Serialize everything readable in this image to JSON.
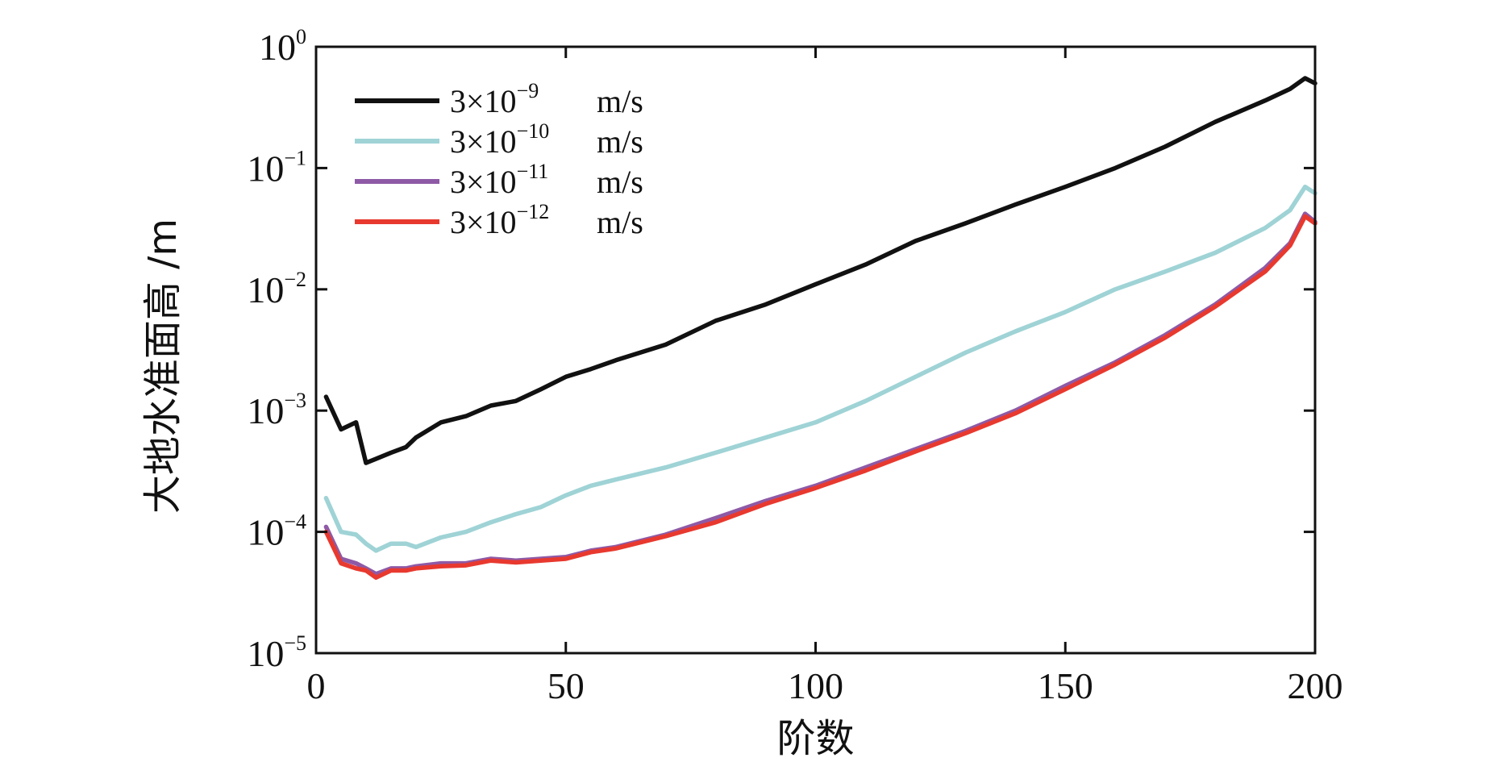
{
  "chart_data": {
    "type": "line",
    "title": "",
    "xlabel": "阶数",
    "ylabel": "大地水准面高 /m",
    "xlim": [
      0,
      200
    ],
    "ylim": [
      1e-05,
      1
    ],
    "yscale": "log",
    "grid": false,
    "legend_position": "top-left",
    "x_ticks": [
      0,
      50,
      100,
      150,
      200
    ],
    "x_tick_labels": [
      "0",
      "50",
      "100",
      "150",
      "200"
    ],
    "y_ticks": [
      1e-05,
      0.0001,
      0.001,
      0.01,
      0.1,
      1
    ],
    "y_tick_labels": [
      {
        "base": "10",
        "exp": "−5"
      },
      {
        "base": "10",
        "exp": "−4"
      },
      {
        "base": "10",
        "exp": "−3"
      },
      {
        "base": "10",
        "exp": "−2"
      },
      {
        "base": "10",
        "exp": "−1"
      },
      {
        "base": "10",
        "exp": "0"
      }
    ],
    "x": [
      2,
      5,
      8,
      10,
      12,
      15,
      18,
      20,
      25,
      30,
      35,
      40,
      45,
      50,
      55,
      60,
      70,
      80,
      90,
      100,
      110,
      120,
      130,
      140,
      150,
      160,
      170,
      180,
      190,
      195,
      198,
      200
    ],
    "series": [
      {
        "name": "3×10^-9 m/s",
        "legend_prefix": "3×10",
        "legend_exp": "−9",
        "legend_unit": "m/s",
        "color": "#111111",
        "values": [
          0.0013,
          0.0007,
          0.0008,
          0.00037,
          0.0004,
          0.00045,
          0.0005,
          0.0006,
          0.0008,
          0.0009,
          0.0011,
          0.0012,
          0.0015,
          0.0019,
          0.0022,
          0.0026,
          0.0035,
          0.0055,
          0.0075,
          0.011,
          0.016,
          0.025,
          0.035,
          0.05,
          0.07,
          0.1,
          0.15,
          0.24,
          0.36,
          0.45,
          0.55,
          0.5
        ]
      },
      {
        "name": "3×10^-10 m/s",
        "legend_prefix": "3×10",
        "legend_exp": "−10",
        "legend_unit": "m/s",
        "color": "#9fd3d6",
        "values": [
          0.00019,
          0.0001,
          9.5e-05,
          8e-05,
          7e-05,
          8e-05,
          8e-05,
          7.5e-05,
          9e-05,
          0.0001,
          0.00012,
          0.00014,
          0.00016,
          0.0002,
          0.00024,
          0.00027,
          0.00034,
          0.00045,
          0.0006,
          0.0008,
          0.0012,
          0.0019,
          0.003,
          0.0045,
          0.0065,
          0.01,
          0.014,
          0.02,
          0.032,
          0.045,
          0.07,
          0.062
        ]
      },
      {
        "name": "3×10^-11 m/s",
        "legend_prefix": "3×10",
        "legend_exp": "−11",
        "legend_unit": "m/s",
        "color": "#8e5aa6",
        "values": [
          0.00011,
          6e-05,
          5.5e-05,
          5e-05,
          4.5e-05,
          5e-05,
          5e-05,
          5.2e-05,
          5.5e-05,
          5.5e-05,
          6e-05,
          5.8e-05,
          6e-05,
          6.2e-05,
          7e-05,
          7.5e-05,
          9.5e-05,
          0.00013,
          0.00018,
          0.00024,
          0.00034,
          0.00048,
          0.00068,
          0.001,
          0.0016,
          0.0025,
          0.0042,
          0.0075,
          0.015,
          0.024,
          0.042,
          0.036
        ]
      },
      {
        "name": "3×10^-12 m/s",
        "legend_prefix": "3×10",
        "legend_exp": "−12",
        "legend_unit": "m/s",
        "color": "#e8392f",
        "values": [
          0.0001,
          5.5e-05,
          5e-05,
          4.8e-05,
          4.2e-05,
          4.8e-05,
          4.8e-05,
          5e-05,
          5.2e-05,
          5.3e-05,
          5.8e-05,
          5.6e-05,
          5.8e-05,
          6e-05,
          6.8e-05,
          7.3e-05,
          9.2e-05,
          0.00012,
          0.00017,
          0.00023,
          0.00032,
          0.00046,
          0.00065,
          0.00095,
          0.0015,
          0.0024,
          0.004,
          0.0072,
          0.014,
          0.023,
          0.04,
          0.035
        ]
      }
    ]
  }
}
